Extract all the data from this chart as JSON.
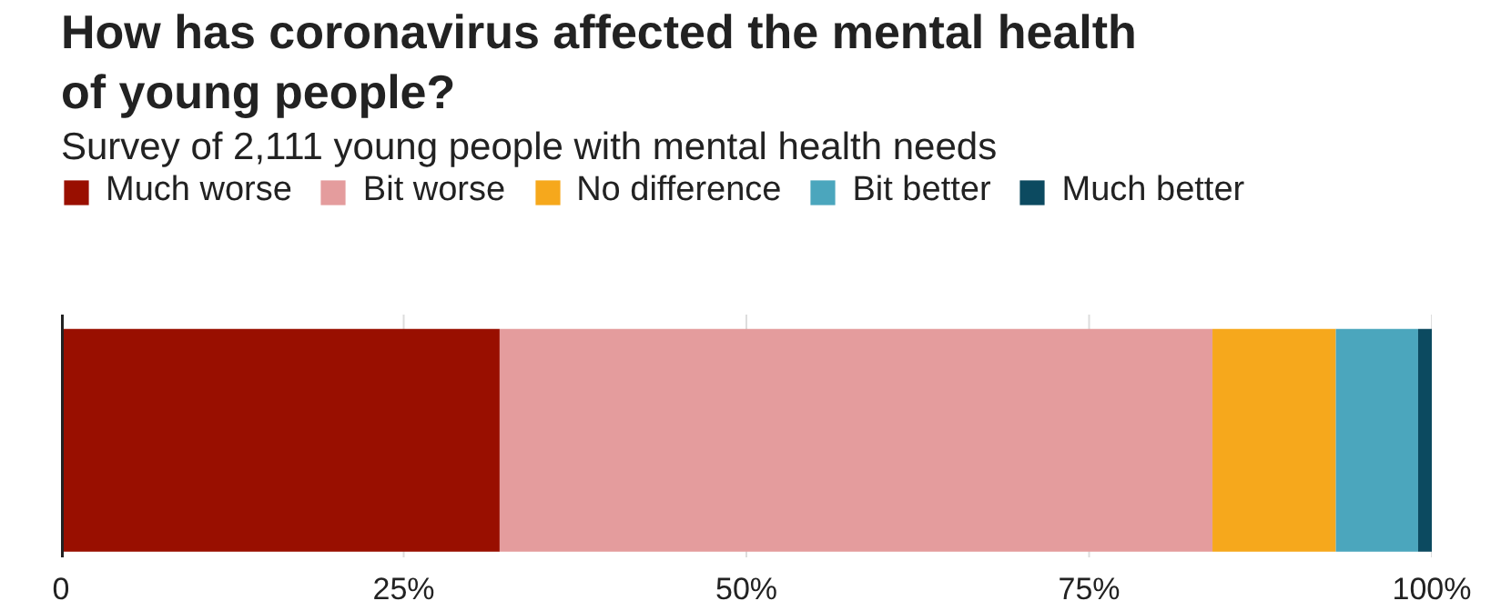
{
  "chart_data": {
    "type": "bar",
    "orientation": "horizontal",
    "stacked": true,
    "title": "How has coronavirus affected the mental health of young people?",
    "subtitle": "Survey of 2,111 young people with mental health needs",
    "categories": [
      null
    ],
    "series": [
      {
        "name": "Much worse",
        "color": "#990f00",
        "values": [
          32.0
        ]
      },
      {
        "name": "Bit worse",
        "color": "#e49c9d",
        "values": [
          52.0
        ]
      },
      {
        "name": "No difference",
        "color": "#f6a81c",
        "values": [
          9.0
        ]
      },
      {
        "name": "Bit better",
        "color": "#4ba6bd",
        "values": [
          6.0
        ]
      },
      {
        "name": "Much better",
        "color": "#0c4a60",
        "values": [
          1.0
        ]
      }
    ],
    "xlim": [
      0,
      100
    ],
    "xticks": [
      0,
      {
        "value": 25,
        "label": "25%"
      },
      {
        "value": 50,
        "label": "50%"
      },
      {
        "value": 75,
        "label": "75%"
      },
      {
        "value": 100,
        "label": "100%"
      }
    ],
    "grid": "x",
    "legend": "top",
    "tick_labels": "x"
  }
}
